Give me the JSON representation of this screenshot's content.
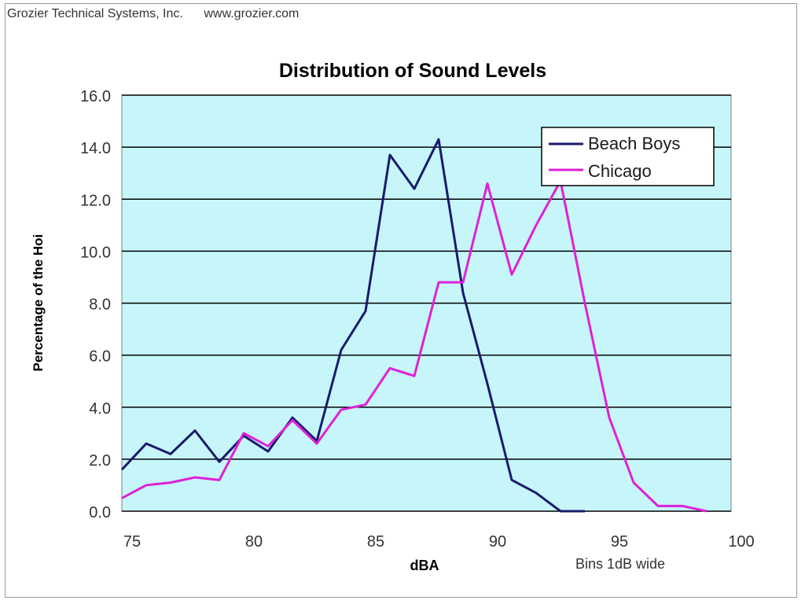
{
  "header": {
    "company": "Grozier Technical Systems, Inc.",
    "website": "www.grozier.com"
  },
  "colors": {
    "plot_background": "#c6f6f9",
    "grid": "#000000",
    "beach_boys": "#1a1a6e",
    "chicago": "#e020d8"
  },
  "chart_data": {
    "type": "line",
    "title": "Distribution of Sound Levels",
    "xlabel": "dBA",
    "ylabel": "Percentage of the Hoi",
    "note": "Bins 1dB wide",
    "xlim": [
      75,
      100
    ],
    "ylim": [
      0,
      16
    ],
    "x_ticks": [
      "75",
      "80",
      "85",
      "90",
      "95",
      "100"
    ],
    "y_ticks": [
      "0.0",
      "2.0",
      "4.0",
      "6.0",
      "8.0",
      "10.0",
      "12.0",
      "14.0",
      "16.0"
    ],
    "grid": true,
    "legend_position": "top-right",
    "series": [
      {
        "name": "Beach Boys",
        "x": [
          75,
          76,
          77,
          78,
          79,
          80,
          81,
          82,
          83,
          84,
          85,
          86,
          87,
          88,
          89,
          90,
          91,
          92,
          93,
          94
        ],
        "y": [
          1.6,
          2.6,
          2.2,
          3.1,
          1.9,
          2.9,
          2.3,
          3.6,
          2.7,
          6.2,
          7.7,
          13.7,
          12.4,
          14.3,
          8.4,
          4.9,
          1.2,
          0.7,
          0.0,
          0.0
        ]
      },
      {
        "name": "Chicago",
        "x": [
          75,
          76,
          77,
          78,
          79,
          80,
          81,
          82,
          83,
          84,
          85,
          86,
          87,
          88,
          89,
          90,
          91,
          92,
          93,
          94,
          95,
          96,
          97,
          98,
          99
        ],
        "y": [
          0.5,
          1.0,
          1.1,
          1.3,
          1.2,
          3.0,
          2.5,
          3.5,
          2.6,
          3.9,
          4.1,
          5.5,
          5.2,
          8.8,
          8.8,
          12.6,
          9.1,
          11.0,
          12.7,
          8.0,
          3.6,
          1.1,
          0.2,
          0.2,
          0.0
        ]
      }
    ]
  }
}
